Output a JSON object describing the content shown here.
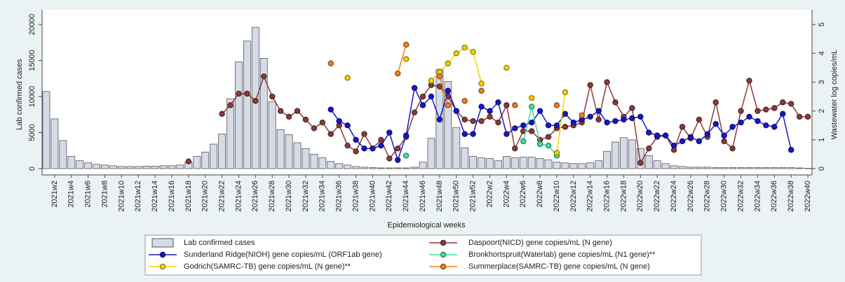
{
  "chart_data": {
    "type": "bar-line",
    "x_label": "Epidemiological weeks",
    "y_label": "Lab  confirmed cases",
    "y2_label": "Wastewater log copies/mL",
    "categories": [
      null,
      "2021w2",
      null,
      "2021w4",
      null,
      "2021w6",
      null,
      "2021w8",
      null,
      "2021w10",
      null,
      "2021w12",
      null,
      "2021w14",
      null,
      "2021w16",
      null,
      "2021w18",
      null,
      "2021w20",
      null,
      "2021w22",
      null,
      "2021w24",
      null,
      "2021w26",
      null,
      "2021w28",
      null,
      "2021w30",
      null,
      "2021w32",
      null,
      "2021w34",
      null,
      "2021w36",
      null,
      "2021w38",
      null,
      "2021w40",
      null,
      "2021w42",
      null,
      "2021w44",
      null,
      "2021w46",
      null,
      "2021w48",
      null,
      "2021w50",
      null,
      "2021w52",
      null,
      "2022w2",
      null,
      "2022w4",
      null,
      "2022w6",
      null,
      "2022w8",
      null,
      "2022w10",
      null,
      "2022w12",
      null,
      "2022w14",
      null,
      "2022w16",
      null,
      "2022w18",
      null,
      "2022w20",
      null,
      "2022w22",
      null,
      "2022w24",
      null,
      "2022w26",
      null,
      "2022w28",
      null,
      "2022w30",
      null,
      "2022w32",
      null,
      "2022w34",
      null,
      "2022w36",
      null,
      "2022w38",
      null,
      "2022w40"
    ],
    "ylim": [
      0,
      20000
    ],
    "yticks": [
      0,
      5000,
      10000,
      15000,
      20000
    ],
    "y2lim": [
      0,
      5
    ],
    "y2ticks": [
      0,
      1,
      2,
      3,
      4,
      5
    ],
    "grid": false,
    "series": [
      {
        "name": "Lab  confirmed cases",
        "kind": "bar",
        "color": "#d5dbe7",
        "values": [
          10700,
          6900,
          3900,
          1700,
          1100,
          800,
          600,
          500,
          400,
          300,
          300,
          300,
          350,
          350,
          400,
          400,
          500,
          900,
          1700,
          2300,
          3400,
          4800,
          9700,
          14800,
          17700,
          19600,
          15300,
          9300,
          5400,
          4700,
          3600,
          2800,
          2000,
          1500,
          1000,
          700,
          500,
          300,
          200,
          150,
          100,
          100,
          100,
          100,
          200,
          900,
          4200,
          13800,
          12100,
          5700,
          2900,
          1700,
          1500,
          1400,
          1100,
          1700,
          1500,
          1600,
          1600,
          1400,
          1200,
          900,
          800,
          700,
          700,
          800,
          1100,
          2400,
          3700,
          4300,
          4000,
          2800,
          1800,
          1100,
          700,
          400,
          300,
          200,
          200,
          200,
          150,
          150,
          150,
          150,
          150,
          150,
          150,
          150,
          150,
          150,
          100,
          50
        ]
      },
      {
        "name": "Daspoort(NICD) gene copies/mL (N gene)",
        "kind": "line",
        "axis": "y2",
        "color": "#8a3b3b",
        "values": [
          null,
          null,
          null,
          null,
          null,
          null,
          null,
          null,
          null,
          null,
          null,
          null,
          null,
          null,
          null,
          null,
          null,
          0.25,
          null,
          null,
          null,
          1.9,
          2.2,
          2.6,
          2.6,
          2.35,
          3.2,
          2.5,
          2.0,
          1.8,
          2.0,
          1.7,
          1.4,
          1.6,
          1.2,
          1.5,
          0.8,
          0.6,
          1.2,
          0.7,
          1.0,
          0.35,
          0.7,
          1.1,
          1.95,
          2.5,
          2.9,
          2.85,
          2.5,
          2.0,
          1.7,
          1.65,
          1.65,
          1.8,
          1.6,
          2.2,
          0.7,
          1.3,
          1.3,
          1.0,
          1.1,
          1.4,
          1.45,
          1.5,
          1.6,
          2.9,
          1.7,
          3.0,
          2.3,
          1.8,
          2.1,
          0.2,
          0.7,
          1.1,
          1.15,
          0.65,
          1.45,
          1.05,
          1.7,
          1.1,
          2.3,
          0.95,
          0.7,
          2.0,
          3.05,
          2.0,
          2.05,
          2.1,
          2.3,
          2.25,
          1.8,
          1.8
        ]
      },
      {
        "name": "Sunderland Ridge(NIOH) gene copies/mL (ORF1ab gene)",
        "kind": "line",
        "axis": "y2",
        "color": "#1717c8",
        "values": [
          null,
          null,
          null,
          null,
          null,
          null,
          null,
          null,
          null,
          null,
          null,
          null,
          null,
          null,
          null,
          null,
          null,
          null,
          null,
          null,
          null,
          null,
          null,
          null,
          null,
          null,
          null,
          null,
          null,
          null,
          null,
          null,
          null,
          null,
          2.05,
          1.65,
          1.5,
          1.0,
          0.7,
          0.7,
          0.8,
          1.25,
          0.3,
          1.15,
          2.8,
          2.2,
          2.5,
          1.7,
          2.7,
          2.0,
          1.2,
          1.2,
          2.15,
          2.0,
          2.3,
          1.2,
          1.4,
          1.5,
          1.6,
          2.0,
          1.5,
          1.5,
          1.9,
          1.6,
          1.7,
          1.8,
          2.0,
          1.6,
          1.65,
          1.7,
          1.75,
          1.8,
          1.25,
          1.15,
          1.15,
          0.8,
          0.95,
          1.1,
          0.95,
          1.2,
          1.55,
          1.15,
          1.45,
          1.6,
          1.8,
          1.65,
          1.5,
          1.45,
          1.9,
          0.65,
          null,
          null
        ]
      },
      {
        "name": "Bronkhortspruit(Waterlab) gene copies/mL (N1 gene)**",
        "kind": "line",
        "axis": "y2",
        "color": "#3fe0a0",
        "values": [
          null,
          null,
          null,
          null,
          null,
          null,
          null,
          null,
          null,
          null,
          null,
          null,
          null,
          null,
          null,
          null,
          null,
          null,
          null,
          null,
          null,
          null,
          null,
          null,
          null,
          null,
          null,
          null,
          null,
          null,
          null,
          null,
          null,
          null,
          null,
          null,
          null,
          null,
          null,
          null,
          null,
          null,
          null,
          0.45,
          null,
          null,
          null,
          null,
          null,
          null,
          null,
          null,
          null,
          null,
          null,
          null,
          null,
          0.95,
          2.15,
          0.85,
          0.8,
          0.45,
          null,
          null,
          null,
          null,
          null,
          null,
          null,
          null,
          null,
          null,
          null,
          null,
          null,
          null,
          null,
          null,
          null,
          null,
          null,
          null,
          null,
          null,
          null,
          null,
          null,
          null,
          null,
          null,
          null,
          null
        ]
      },
      {
        "name": "Godrich(SAMRC-TB) gene copies/mL (N gene)**",
        "kind": "line",
        "axis": "y2",
        "color": "#f2d400",
        "values": [
          null,
          null,
          null,
          null,
          null,
          null,
          null,
          null,
          null,
          null,
          null,
          null,
          null,
          null,
          null,
          null,
          null,
          null,
          null,
          null,
          null,
          null,
          null,
          null,
          null,
          null,
          null,
          null,
          null,
          null,
          null,
          null,
          null,
          null,
          null,
          null,
          3.15,
          null,
          null,
          null,
          null,
          null,
          null,
          3.8,
          null,
          null,
          3.05,
          3.35,
          3.65,
          4.0,
          4.2,
          4.05,
          2.95,
          null,
          null,
          3.5,
          null,
          null,
          2.45,
          null,
          null,
          0.55,
          2.65,
          null,
          null,
          null,
          null,
          null,
          null,
          null,
          null,
          null,
          null,
          null,
          null,
          null,
          null,
          null,
          null,
          null,
          null,
          null,
          null,
          null,
          null,
          null,
          null,
          null,
          null,
          null,
          null,
          null
        ]
      },
      {
        "name": "Summerplace(SAMRC-TB) gene copies/mL (N gene)",
        "kind": "line",
        "axis": "y2",
        "color": "#f08020",
        "values": [
          null,
          null,
          null,
          null,
          null,
          null,
          null,
          null,
          null,
          null,
          null,
          null,
          null,
          null,
          null,
          null,
          null,
          null,
          null,
          null,
          null,
          null,
          null,
          null,
          null,
          null,
          null,
          null,
          null,
          null,
          null,
          null,
          null,
          null,
          3.65,
          null,
          null,
          null,
          null,
          null,
          null,
          null,
          3.3,
          4.3,
          null,
          null,
          null,
          3.2,
          2.2,
          null,
          2.35,
          null,
          2.7,
          null,
          null,
          null,
          2.2,
          null,
          null,
          null,
          null,
          2.2,
          null,
          null,
          1.85,
          null,
          null,
          null,
          null,
          null,
          null,
          null,
          null,
          null,
          null,
          null,
          null,
          null,
          null,
          null,
          null,
          null,
          null,
          null,
          null,
          null,
          null,
          null,
          null,
          null,
          null,
          null
        ]
      }
    ]
  }
}
